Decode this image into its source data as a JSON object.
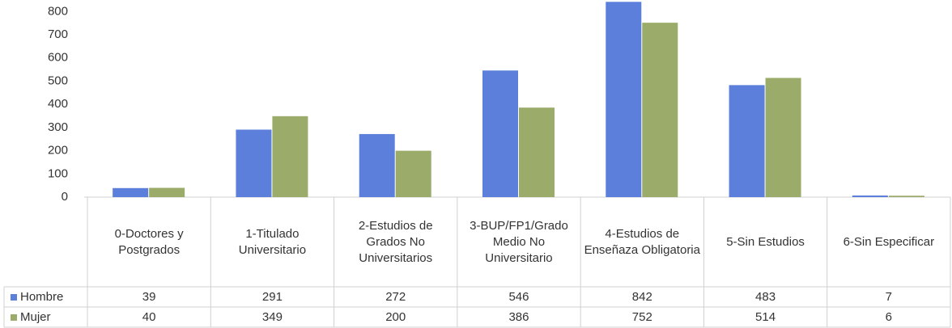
{
  "chart_data": {
    "type": "bar",
    "categories": [
      "0-Doctores y Postgrados",
      "1-Titulado Universitario",
      "2-Estudios de Grados No Universitarios",
      "3-BUP/FP1/Grado Medio No Universitario",
      "4-Estudios de Enseñaza Obligatoria",
      "5-Sin Estudios",
      "6-Sin Especificar"
    ],
    "series": [
      {
        "name": "Hombre",
        "color": "#5b7fdb",
        "values": [
          39,
          291,
          272,
          546,
          842,
          483,
          7
        ]
      },
      {
        "name": "Mujer",
        "color": "#9aab6a",
        "values": [
          40,
          349,
          200,
          386,
          752,
          514,
          6
        ]
      }
    ],
    "ylim": [
      0,
      850
    ],
    "yticks": [
      0,
      100,
      200,
      300,
      400,
      500,
      600,
      700,
      800
    ],
    "grid": false
  }
}
